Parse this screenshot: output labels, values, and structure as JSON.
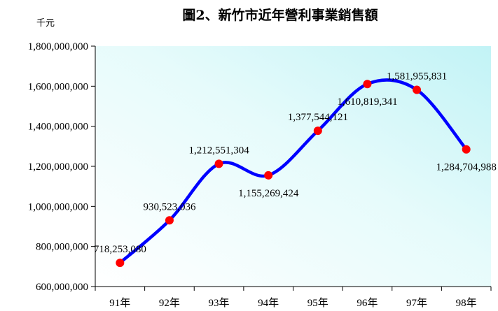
{
  "chart_data": {
    "type": "line",
    "title": "圖2、新竹市近年營利事業銷售額",
    "unit_label": "千元",
    "categories": [
      "91年",
      "92年",
      "93年",
      "94年",
      "95年",
      "96年",
      "97年",
      "98年"
    ],
    "series": [
      {
        "values": [
          718253080,
          930523036,
          1212551304,
          1155269424,
          1377544121,
          1610819341,
          1581955831,
          1284704988
        ],
        "color": "#0000ff",
        "marker_color": "#ff0000"
      }
    ],
    "data_labels": [
      "718,253,080",
      "930,523,036",
      "1,212,551,304",
      "1,155,269,424",
      "1,377,544,121",
      "1,610,819,341",
      "1,581,955,831",
      "1,284,704,988"
    ],
    "y_tick_labels": [
      "600,000,000",
      "800,000,000",
      "1,000,000,000",
      "1,200,000,000",
      "1,400,000,000",
      "1,600,000,000",
      "1,800,000,000"
    ],
    "ylim": [
      600000000,
      1800000000
    ],
    "y_step": 200000000,
    "xlabel": "",
    "ylabel": "",
    "grid": false,
    "legend": "none",
    "smooth": true,
    "plot_background": "gradient-white-to-light-cyan"
  }
}
